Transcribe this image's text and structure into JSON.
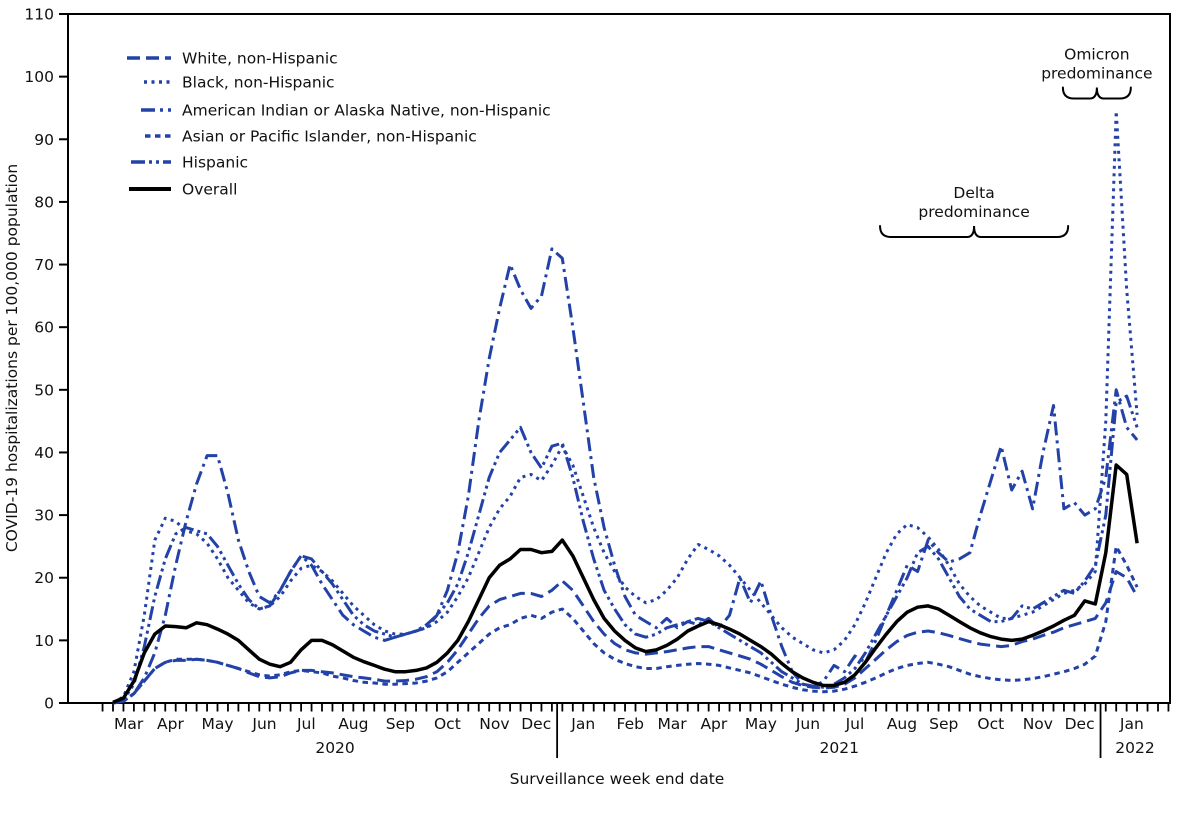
{
  "figure": {
    "y_axis_title": "COVID-19 hospitalizations per 100,000 population",
    "x_axis_title": "Surveillance week end date"
  },
  "chart_data": {
    "type": "line",
    "title": "",
    "x_unit": "surveillance week (weekly ticks)",
    "n_weeks": 99,
    "x_range_label": "Mar 2020 - Jan 2022",
    "ylim": [
      0,
      110
    ],
    "y_ticks": [
      0,
      10,
      20,
      30,
      40,
      50,
      60,
      70,
      80,
      90,
      100,
      110
    ],
    "grid": false,
    "legend_position": "top-left-inside",
    "months": [
      {
        "label": "Mar",
        "center_week": 1.5
      },
      {
        "label": "Apr",
        "center_week": 5.5
      },
      {
        "label": "May",
        "center_week": 10
      },
      {
        "label": "Jun",
        "center_week": 14.5
      },
      {
        "label": "Jul",
        "center_week": 18.5
      },
      {
        "label": "Aug",
        "center_week": 23
      },
      {
        "label": "Sep",
        "center_week": 27.5
      },
      {
        "label": "Oct",
        "center_week": 32
      },
      {
        "label": "Nov",
        "center_week": 36.5
      },
      {
        "label": "Dec",
        "center_week": 40.5
      },
      {
        "label": "Jan",
        "center_week": 45
      },
      {
        "label": "Feb",
        "center_week": 49.5
      },
      {
        "label": "Mar",
        "center_week": 53.5
      },
      {
        "label": "Apr",
        "center_week": 57.5
      },
      {
        "label": "May",
        "center_week": 62
      },
      {
        "label": "Jun",
        "center_week": 66.5
      },
      {
        "label": "Jul",
        "center_week": 71
      },
      {
        "label": "Aug",
        "center_week": 75.5
      },
      {
        "label": "Sep",
        "center_week": 79.5
      },
      {
        "label": "Oct",
        "center_week": 84
      },
      {
        "label": "Nov",
        "center_week": 88.5
      },
      {
        "label": "Dec",
        "center_week": 92.5
      },
      {
        "label": "Jan",
        "center_week": 97.5
      }
    ],
    "years": [
      {
        "label": "2020",
        "center_week": 21.25
      },
      {
        "label": "2021",
        "center_week": 69.5
      },
      {
        "label": "2022",
        "center_week": 97.8
      }
    ],
    "year_divider_weeks": [
      42.5,
      94.5
    ],
    "annotations": [
      {
        "label_lines": [
          "Delta",
          "predominance"
        ],
        "week_start": 73.4,
        "week_end": 91.4,
        "y_value": 74.4
      },
      {
        "label_lines": [
          "Omicron",
          "predominance"
        ],
        "week_start": 90.9,
        "week_end": 97.4,
        "y_value": 96.5
      }
    ],
    "series": [
      {
        "name": "White, non-Hispanic",
        "color": "#2342a8",
        "pattern": "long-dash",
        "values": [
          0,
          0.3,
          1.5,
          3.5,
          5.5,
          6.5,
          6.8,
          6.8,
          7,
          6.8,
          6.5,
          6,
          5.5,
          4.8,
          4.2,
          4,
          4.2,
          4.8,
          5.2,
          5.2,
          5,
          4.8,
          4.5,
          4.2,
          4,
          3.8,
          3.5,
          3.5,
          3.6,
          3.8,
          4.2,
          5,
          6.5,
          8.5,
          11,
          13.5,
          15.5,
          16.5,
          17,
          17.5,
          17.5,
          17,
          18,
          19.5,
          18,
          15.5,
          13,
          11,
          9.5,
          8.5,
          8,
          7.8,
          8,
          8.2,
          8.5,
          8.8,
          9,
          9,
          8.5,
          8,
          7.5,
          7,
          6.2,
          5.2,
          4.2,
          3.3,
          2.8,
          2.5,
          2.4,
          2.5,
          3,
          4,
          5.5,
          7,
          8.5,
          9.8,
          10.8,
          11.3,
          11.5,
          11.2,
          10.8,
          10.3,
          9.8,
          9.4,
          9.2,
          9,
          9.2,
          9.8,
          10.2,
          10.8,
          11.3,
          12,
          12.5,
          13,
          13.5,
          16,
          21,
          20,
          17
        ]
      },
      {
        "name": "Black, non-Hispanic",
        "color": "#2342a8",
        "pattern": "dot",
        "values": [
          0,
          1,
          5,
          14,
          26,
          29.5,
          29,
          27.5,
          27,
          25.5,
          23,
          20,
          18,
          16,
          15,
          15.5,
          17,
          19.5,
          21.5,
          22,
          21,
          19.5,
          17.5,
          15.5,
          14,
          12.5,
          11.5,
          11,
          11,
          11.5,
          12,
          13,
          14.5,
          17,
          20,
          24,
          28,
          31,
          33,
          36,
          36.5,
          35.5,
          38,
          41,
          38,
          33,
          28,
          24,
          21,
          18.5,
          17,
          16,
          16.5,
          18,
          20,
          23,
          25.3,
          24.5,
          23.5,
          22,
          20,
          18,
          16,
          14,
          12,
          10.5,
          9.5,
          8.5,
          8,
          8.5,
          10,
          12.5,
          16,
          20,
          24,
          27,
          28.5,
          28,
          26.5,
          24.5,
          22,
          19,
          17,
          15.5,
          14.5,
          13.5,
          13.5,
          14,
          14.5,
          15.5,
          16.5,
          17.5,
          18,
          19,
          21,
          45,
          94.5,
          66,
          46
        ]
      },
      {
        "name": "American Indian or Alaska Native, non-Hispanic",
        "color": "#2342a8",
        "pattern": "dash-dot",
        "values": [
          0,
          0.3,
          1.5,
          4,
          8,
          14,
          22,
          29,
          35,
          39.5,
          39.5,
          33.5,
          26,
          21,
          17,
          16,
          18,
          21,
          23.5,
          22,
          19,
          16.5,
          14,
          12.5,
          11.5,
          10.5,
          10,
          10.5,
          11,
          11.5,
          12,
          14,
          18,
          24,
          33,
          45,
          55,
          63,
          70,
          66,
          63,
          65,
          72.5,
          71,
          60,
          48,
          36,
          28,
          22,
          17,
          14,
          13,
          12,
          13.5,
          12,
          13,
          12.5,
          13.5,
          12,
          14,
          20,
          16,
          19.5,
          14,
          9,
          5,
          3,
          2.5,
          3.5,
          6,
          5,
          7.5,
          6.5,
          10,
          14,
          18,
          22,
          21,
          26,
          24,
          22.5,
          23,
          24,
          30,
          35.5,
          41,
          34,
          37,
          31,
          40,
          47.5,
          31,
          32,
          30,
          31,
          36,
          50,
          44,
          42
        ]
      },
      {
        "name": "Asian or Pacific Islander, non-Hispanic",
        "color": "#2342a8",
        "pattern": "short-dash",
        "values": [
          0,
          0.3,
          1.5,
          3.5,
          5.5,
          6.5,
          7,
          7,
          7,
          6.8,
          6.5,
          6,
          5.5,
          5,
          4.5,
          4.3,
          4.5,
          5,
          5.2,
          5,
          4.8,
          4.3,
          4,
          3.6,
          3.3,
          3.2,
          3,
          3,
          3.1,
          3.2,
          3.5,
          4,
          5,
          6.5,
          8,
          9.5,
          11,
          12,
          12.5,
          13.5,
          14,
          13.5,
          14.5,
          15,
          13.5,
          11.5,
          9.5,
          8,
          7,
          6.3,
          5.8,
          5.5,
          5.5,
          5.8,
          6,
          6.2,
          6.3,
          6.2,
          6,
          5.6,
          5.2,
          4.8,
          4.2,
          3.6,
          3,
          2.5,
          2.1,
          1.9,
          1.8,
          1.9,
          2.2,
          2.7,
          3.3,
          4,
          4.8,
          5.5,
          6,
          6.3,
          6.5,
          6.2,
          5.8,
          5.2,
          4.6,
          4.2,
          3.9,
          3.7,
          3.6,
          3.7,
          3.9,
          4.2,
          4.6,
          5,
          5.5,
          6.2,
          7.5,
          13,
          25,
          22,
          18.5
        ]
      },
      {
        "name": "Hispanic",
        "color": "#2342a8",
        "pattern": "dash-dot-dot",
        "values": [
          0,
          0.5,
          3,
          9,
          17,
          23,
          27,
          28,
          27.5,
          27,
          25,
          22,
          19,
          16.5,
          15,
          15.5,
          18,
          21,
          23.5,
          23,
          21,
          19,
          16.5,
          14,
          12.5,
          11.5,
          11,
          10.5,
          11,
          11.5,
          12.5,
          14,
          16,
          19,
          24,
          30,
          36,
          40,
          42,
          44,
          40,
          37.5,
          41,
          41.5,
          36,
          29,
          23,
          18,
          15,
          12.5,
          11,
          10.5,
          11,
          12,
          12.5,
          13,
          13.5,
          13,
          12,
          11,
          10,
          9,
          8,
          6.5,
          5,
          4,
          3,
          2.7,
          2.5,
          3,
          4,
          5.5,
          8,
          11,
          14,
          17,
          20,
          24,
          25,
          23,
          20,
          17,
          15,
          14,
          13,
          13,
          13.5,
          15.5,
          15,
          16,
          17,
          18,
          17.5,
          19.5,
          22,
          30,
          48,
          49,
          44
        ]
      },
      {
        "name": "Overall",
        "color": "#000000",
        "pattern": "solid",
        "values": [
          0.1,
          0.8,
          3.5,
          8,
          11,
          12.3,
          12.2,
          12,
          12.8,
          12.5,
          11.8,
          11,
          10,
          8.5,
          7,
          6.2,
          5.8,
          6.5,
          8.5,
          10,
          10,
          9.3,
          8.3,
          7.3,
          6.6,
          6,
          5.4,
          5,
          5,
          5.2,
          5.6,
          6.5,
          8,
          10,
          13,
          16.5,
          20,
          22,
          23,
          24.5,
          24.5,
          24,
          24.2,
          26,
          23.5,
          20,
          16.5,
          13.5,
          11.5,
          10,
          8.8,
          8.2,
          8.5,
          9.2,
          10.2,
          11.5,
          12.3,
          13,
          12.5,
          11.8,
          11,
          10,
          9,
          7.8,
          6.3,
          5,
          4,
          3.3,
          2.8,
          2.8,
          3.3,
          4.5,
          6.5,
          8.8,
          11,
          13,
          14.5,
          15.3,
          15.5,
          15,
          14,
          13,
          12,
          11.2,
          10.6,
          10.2,
          10,
          10.2,
          10.8,
          11.5,
          12.3,
          13.2,
          14,
          16.3,
          15.8,
          24,
          38,
          36.5,
          25.5
        ]
      }
    ]
  }
}
